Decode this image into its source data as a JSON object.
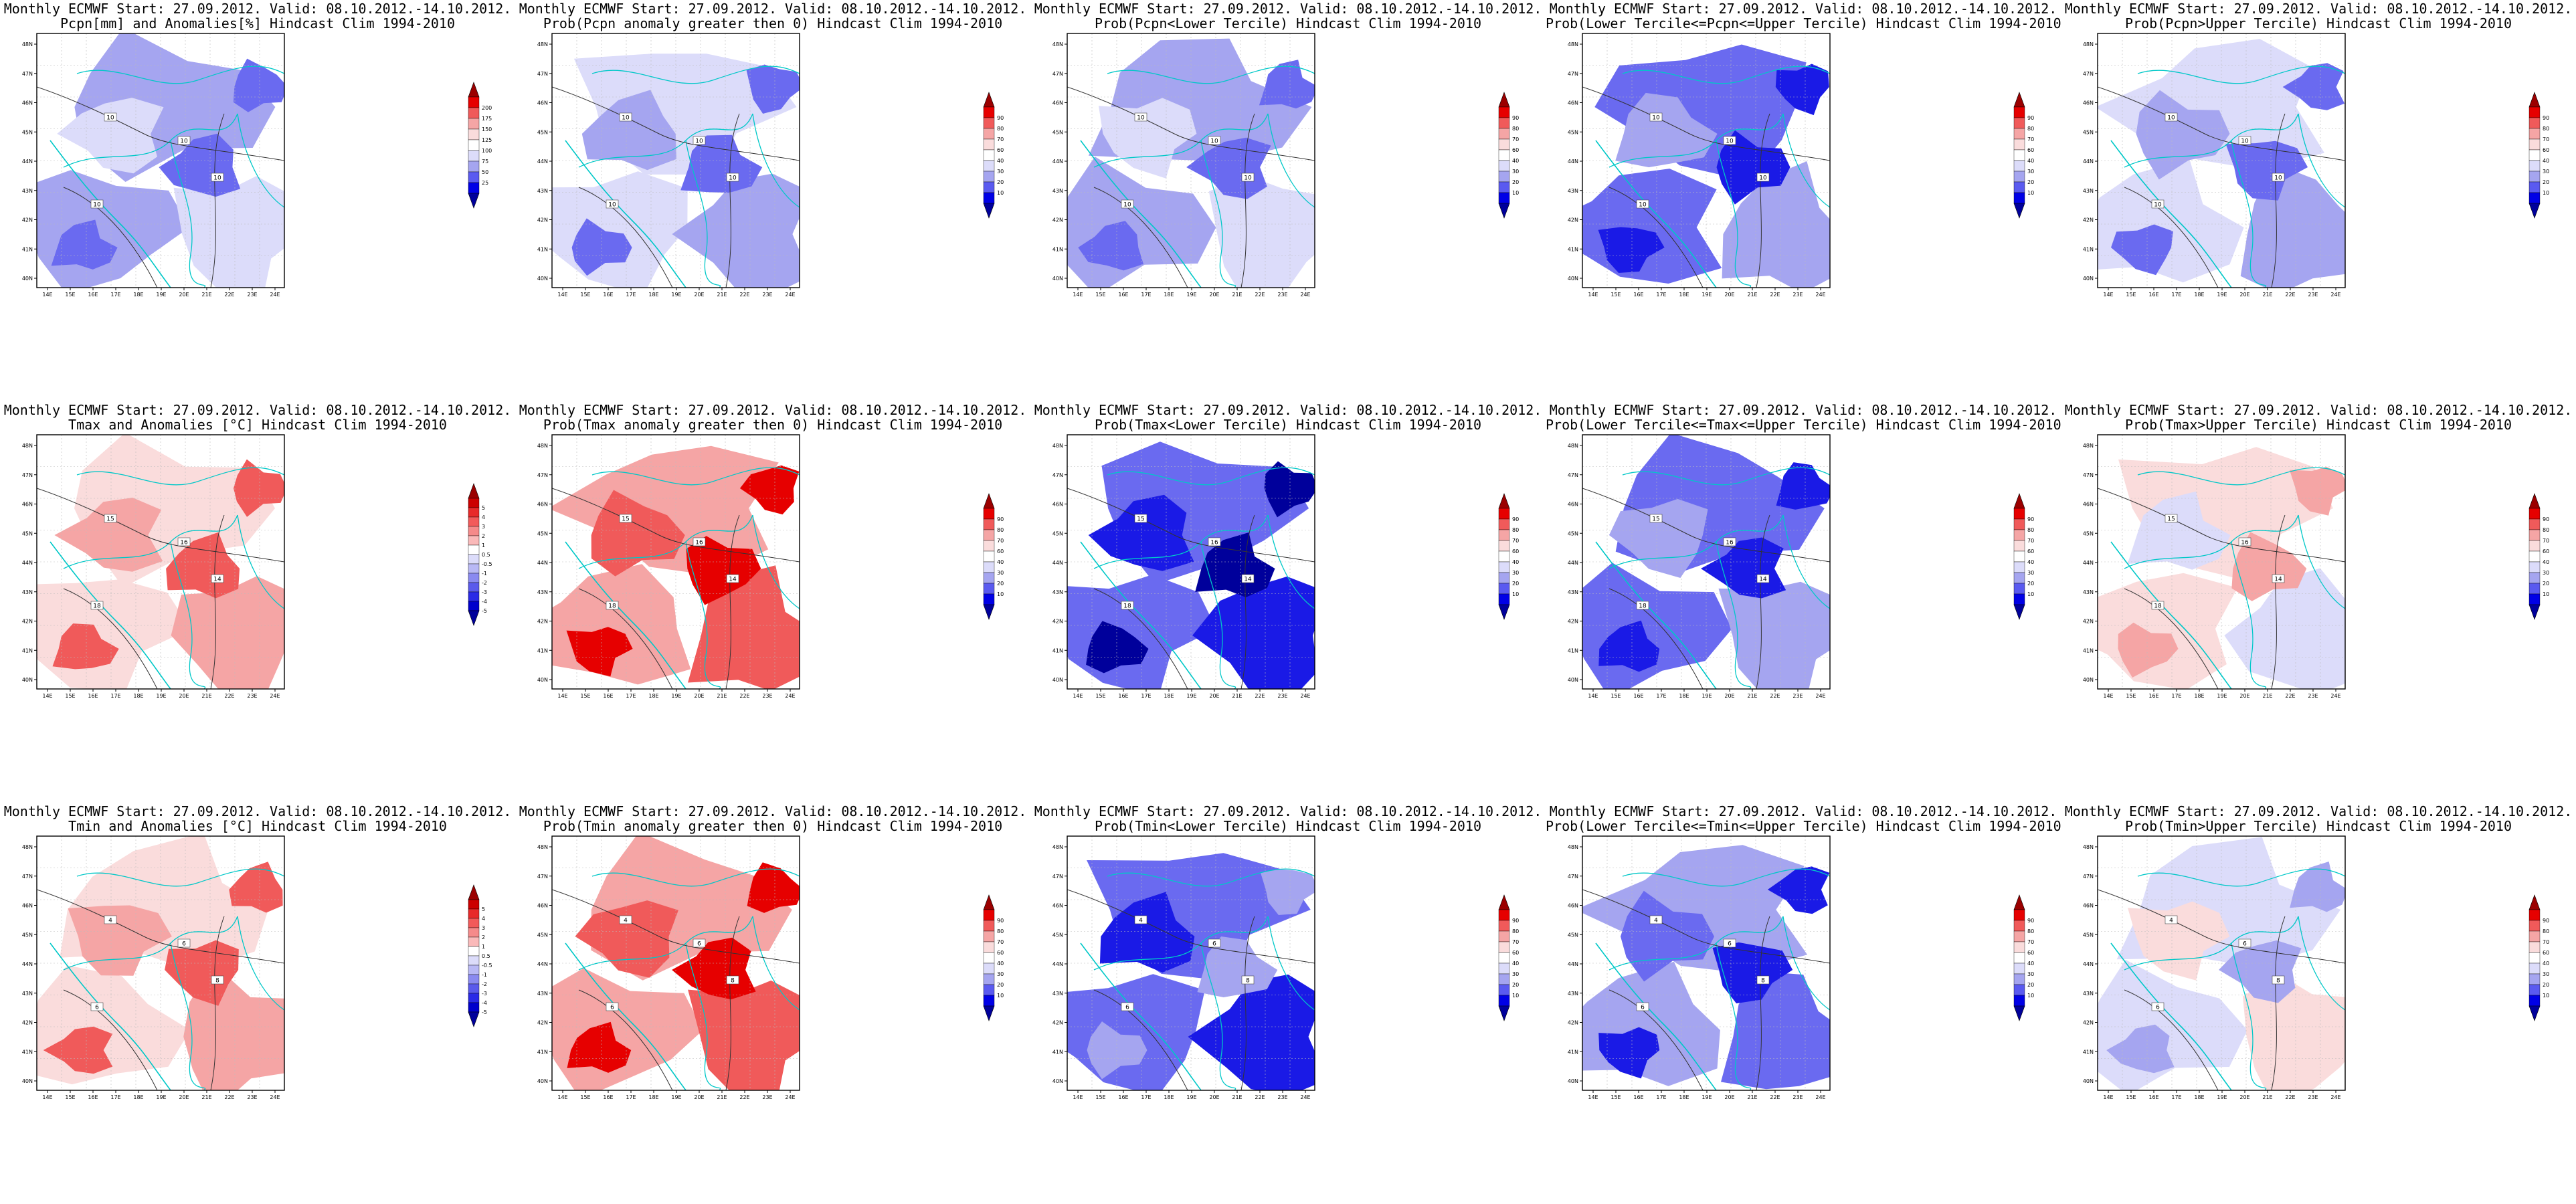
{
  "rows": [
    {
      "panels": [
        {
          "line1": "Monthly ECMWF Start: 27.09.2012. Valid: 08.10.2012.-14.10.2012.",
          "line2": "Pcpn[mm] and Anomalies[%] Hindcast Clim 1994-2010",
          "scale": "anom_pcpn",
          "contours": [
            "10",
            "10",
            "10",
            "10"
          ]
        },
        {
          "line1": "Monthly ECMWF Start: 27.09.2012. Valid: 08.10.2012.-14.10.2012.",
          "line2": "Prob(Pcpn anomaly greater then 0) Hindcast Clim 1994-2010",
          "scale": "prob",
          "contours": [
            "10",
            "10",
            "10",
            "10"
          ]
        },
        {
          "line1": "Monthly ECMWF Start: 27.09.2012. Valid: 08.10.2012.-14.10.2012.",
          "line2": "Prob(Pcpn<Lower Tercile) Hindcast Clim 1994-2010",
          "scale": "prob",
          "contours": [
            "10",
            "10",
            "10",
            "10"
          ]
        },
        {
          "line1": "Monthly ECMWF Start: 27.09.2012. Valid: 08.10.2012.-14.10.2012.",
          "line2": "Prob(Lower Tercile<=Pcpn<=Upper Tercile) Hindcast Clim 1994-2010",
          "scale": "prob",
          "contours": [
            "10",
            "10",
            "10",
            "10"
          ]
        },
        {
          "line1": "Monthly ECMWF Start: 27.09.2012. Valid: 08.10.2012.-14.10.2012.",
          "line2": "Prob(Pcpn>Upper Tercile) Hindcast Clim 1994-2010",
          "scale": "prob",
          "contours": [
            "10",
            "10",
            "10",
            "10"
          ]
        }
      ]
    },
    {
      "panels": [
        {
          "line1": "Monthly ECMWF Start: 27.09.2012. Valid: 08.10.2012.-14.10.2012.",
          "line2": "Tmax and Anomalies [°C] Hindcast Clim 1994-2010",
          "scale": "anom_temp",
          "contours": [
            "15",
            "16",
            "18",
            "14"
          ]
        },
        {
          "line1": "Monthly ECMWF Start: 27.09.2012. Valid: 08.10.2012.-14.10.2012.",
          "line2": "Prob(Tmax anomaly greater then 0) Hindcast Clim 1994-2010",
          "scale": "prob",
          "contours": [
            "15",
            "16",
            "18",
            "14"
          ]
        },
        {
          "line1": "Monthly ECMWF Start: 27.09.2012. Valid: 08.10.2012.-14.10.2012.",
          "line2": "Prob(Tmax<Lower Tercile) Hindcast Clim 1994-2010",
          "scale": "prob",
          "contours": [
            "15",
            "16",
            "18",
            "14"
          ]
        },
        {
          "line1": "Monthly ECMWF Start: 27.09.2012. Valid: 08.10.2012.-14.10.2012.",
          "line2": "Prob(Lower Tercile<=Tmax<=Upper Tercile) Hindcast Clim 1994-2010",
          "scale": "prob",
          "contours": [
            "15",
            "16",
            "18",
            "14"
          ]
        },
        {
          "line1": "Monthly ECMWF Start: 27.09.2012. Valid: 08.10.2012.-14.10.2012.",
          "line2": "Prob(Tmax>Upper Tercile) Hindcast Clim 1994-2010",
          "scale": "prob",
          "contours": [
            "15",
            "16",
            "18",
            "14"
          ]
        }
      ]
    },
    {
      "panels": [
        {
          "line1": "Monthly ECMWF Start: 27.09.2012. Valid: 08.10.2012.-14.10.2012.",
          "line2": "Tmin and Anomalies [°C] Hindcast Clim 1994-2010",
          "scale": "anom_temp",
          "contours": [
            "4",
            "6",
            "6",
            "8"
          ]
        },
        {
          "line1": "Monthly ECMWF Start: 27.09.2012. Valid: 08.10.2012.-14.10.2012.",
          "line2": "Prob(Tmin anomaly greater then 0) Hindcast Clim 1994-2010",
          "scale": "prob",
          "contours": [
            "4",
            "6",
            "6",
            "8"
          ]
        },
        {
          "line1": "Monthly ECMWF Start: 27.09.2012. Valid: 08.10.2012.-14.10.2012.",
          "line2": "Prob(Tmin<Lower Tercile) Hindcast Clim 1994-2010",
          "scale": "prob",
          "contours": [
            "4",
            "6",
            "6",
            "8"
          ]
        },
        {
          "line1": "Monthly ECMWF Start: 27.09.2012. Valid: 08.10.2012.-14.10.2012.",
          "line2": "Prob(Lower Tercile<=Tmin<=Upper Tercile) Hindcast Clim 1994-2010",
          "scale": "prob",
          "contours": [
            "4",
            "6",
            "6",
            "8"
          ]
        },
        {
          "line1": "Monthly ECMWF Start: 27.09.2012. Valid: 08.10.2012.-14.10.2012.",
          "line2": "Prob(Tmin>Upper Tercile) Hindcast Clim 1994-2010",
          "scale": "prob",
          "contours": [
            "4",
            "6",
            "6",
            "8"
          ]
        }
      ]
    }
  ],
  "axes": {
    "lat_ticks": [
      "48N",
      "47N",
      "46N",
      "45N",
      "44N",
      "43N",
      "42N",
      "41N",
      "40N"
    ],
    "lon_ticks": [
      "14E",
      "15E",
      "16E",
      "17E",
      "18E",
      "19E",
      "20E",
      "21E",
      "22E",
      "23E",
      "24E"
    ]
  },
  "scales": {
    "anom_pcpn": {
      "labels": [
        "200",
        "175",
        "150",
        "125",
        "100",
        "75",
        "50",
        "25"
      ],
      "colors": [
        "#9b0000",
        "#e60000",
        "#f05a5a",
        "#f5a5a5",
        "#fadcdc",
        "#ffffff",
        "#dcdcfa",
        "#a5a5f0",
        "#5a5af0",
        "#0000e6",
        "#00009b"
      ]
    },
    "anom_temp": {
      "labels": [
        "5",
        "4",
        "3",
        "2",
        "1",
        "0.5",
        "-0.5",
        "-1",
        "-2",
        "-3",
        "-4",
        "-5"
      ],
      "colors": [
        "#9b0000",
        "#cc0000",
        "#e82a2a",
        "#f25a5a",
        "#f58a8a",
        "#fab9b9",
        "#ffffff",
        "#dcdcfa",
        "#b9b9f5",
        "#8a8af0",
        "#5a5aeb",
        "#2a2ae6",
        "#0000cc",
        "#00009b"
      ]
    },
    "prob": {
      "labels": [
        "90",
        "80",
        "70",
        "60",
        "40",
        "30",
        "20",
        "10"
      ],
      "colors": [
        "#9b0000",
        "#e60000",
        "#f05a5a",
        "#f5a5a5",
        "#fadcdc",
        "#ffffff",
        "#dcdcfa",
        "#a5a5f0",
        "#5a5af0",
        "#0000e6",
        "#00009b"
      ]
    }
  },
  "palette": {
    "ocean_line": "#00c8c8",
    "contour_line": "#333333",
    "frame": "#000000",
    "blue_1": "#dcdcfa",
    "blue_2": "#a5a5f0",
    "blue_3": "#6a6af0",
    "blue_4": "#1a1ae6",
    "blue_5": "#00009b",
    "red_1": "#fadcdc",
    "red_2": "#f5a5a5",
    "red_3": "#f05a5a",
    "red_4": "#e60000"
  }
}
